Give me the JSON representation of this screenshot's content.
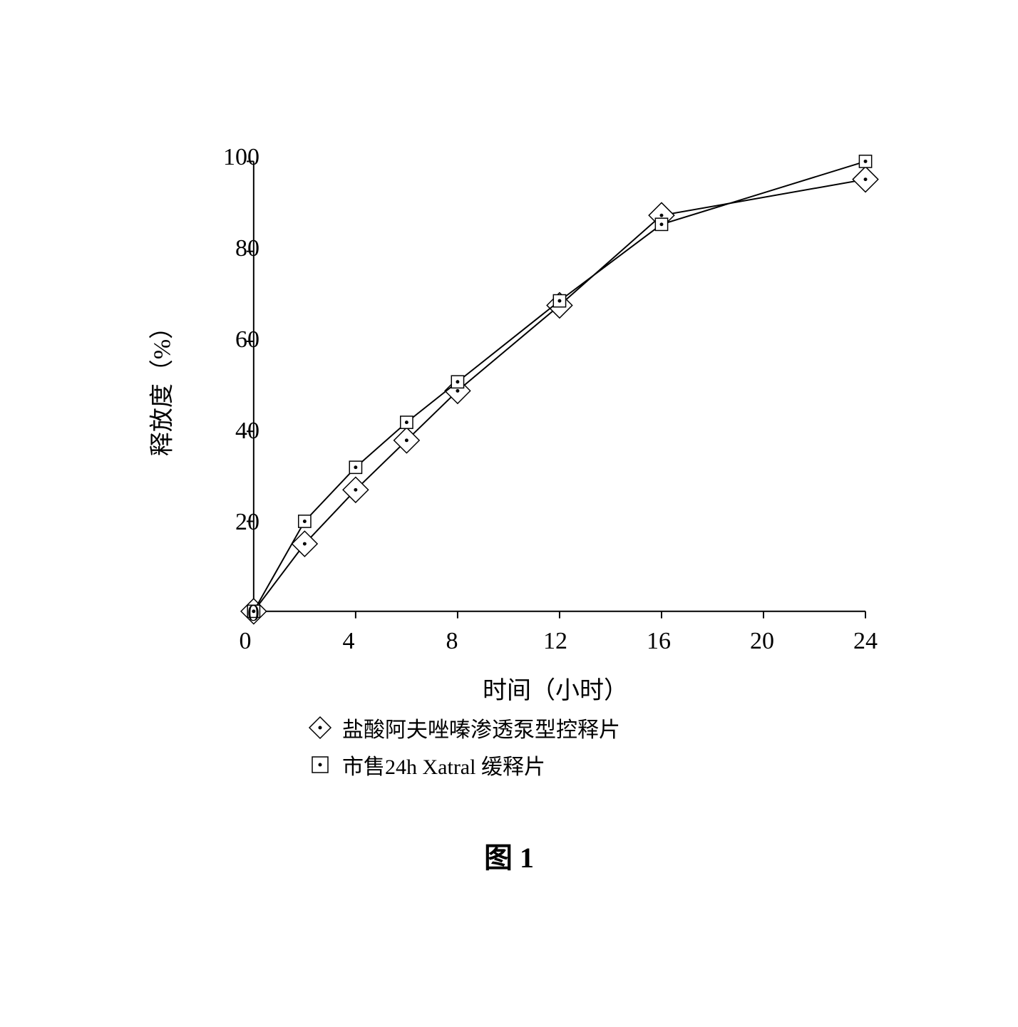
{
  "chart": {
    "type": "line",
    "background_color": "#ffffff",
    "line_color": "#000000",
    "line_width": 2,
    "xlim": [
      0,
      24
    ],
    "ylim": [
      0,
      100
    ],
    "xticks": [
      0,
      4,
      8,
      12,
      16,
      20,
      24
    ],
    "yticks": [
      0,
      20,
      40,
      60,
      80,
      100
    ],
    "xlabel": "时间（小时）",
    "ylabel": "释放度（%）",
    "label_fontsize": 34,
    "tick_fontsize": 34,
    "series": [
      {
        "name": "盐酸阿夫唑嗪渗透泵型控释片",
        "marker": "diamond",
        "marker_size": 18,
        "marker_fill": "#ffffff",
        "marker_stroke": "#000000",
        "inner_dot": true,
        "x": [
          0,
          2,
          4,
          6,
          8,
          12,
          16,
          24
        ],
        "y": [
          0,
          15,
          27,
          38,
          49,
          68,
          88,
          96
        ]
      },
      {
        "name": "市售24h Xatral 缓释片",
        "marker": "square",
        "marker_size": 14,
        "marker_fill": "#ffffff",
        "marker_stroke": "#000000",
        "inner_dot": true,
        "x": [
          0,
          2,
          4,
          6,
          8,
          12,
          16,
          24
        ],
        "y": [
          0,
          20,
          32,
          42,
          51,
          69,
          86,
          100
        ]
      }
    ]
  },
  "caption": "图 1"
}
